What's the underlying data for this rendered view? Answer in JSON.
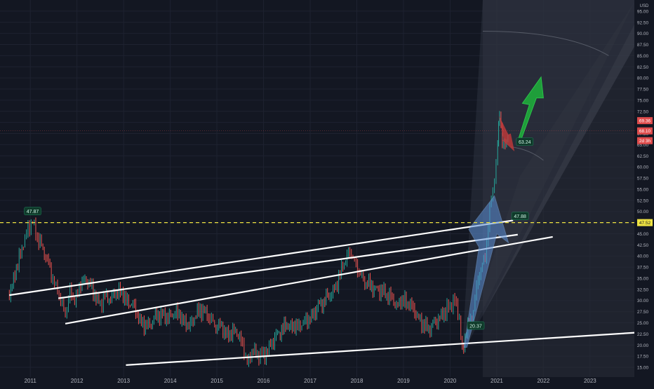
{
  "chart_data": {
    "type": "candlestick",
    "currency": "USD",
    "x_ticks": [
      "2011",
      "2012",
      "2013",
      "2014",
      "2015",
      "2016",
      "2017",
      "2018",
      "2019",
      "2020",
      "2021",
      "2022",
      "2023"
    ],
    "y_ticks": [
      "15.00",
      "17.50",
      "20.00",
      "22.50",
      "25.00",
      "27.50",
      "30.00",
      "32.50",
      "35.00",
      "37.50",
      "40.00",
      "42.50",
      "45.00",
      "47.50",
      "50.00",
      "52.50",
      "55.00",
      "57.50",
      "60.00",
      "62.50",
      "65.00",
      "67.50",
      "70.00",
      "72.50",
      "75.00",
      "77.50",
      "80.00",
      "82.50",
      "85.00",
      "87.50",
      "90.00",
      "92.50",
      "95.00"
    ],
    "ylim": [
      12.8,
      97.5
    ],
    "xlim": [
      2010.35,
      2023.95
    ],
    "price_series": [
      [
        2010.55,
        31.5
      ],
      [
        2010.7,
        37
      ],
      [
        2010.85,
        43
      ],
      [
        2010.95,
        46
      ],
      [
        2011.05,
        47.87
      ],
      [
        2011.15,
        44
      ],
      [
        2011.3,
        41
      ],
      [
        2011.45,
        36
      ],
      [
        2011.55,
        33
      ],
      [
        2011.65,
        30
      ],
      [
        2011.75,
        27
      ],
      [
        2011.85,
        32
      ],
      [
        2011.95,
        30
      ],
      [
        2012.05,
        33
      ],
      [
        2012.2,
        35
      ],
      [
        2012.35,
        32
      ],
      [
        2012.5,
        29
      ],
      [
        2012.6,
        31
      ],
      [
        2012.75,
        30.5
      ],
      [
        2012.9,
        32.5
      ],
      [
        2013.05,
        30
      ],
      [
        2013.2,
        29
      ],
      [
        2013.35,
        25.5
      ],
      [
        2013.5,
        24
      ],
      [
        2013.65,
        26
      ],
      [
        2013.8,
        27
      ],
      [
        2013.95,
        26
      ],
      [
        2014.1,
        27.5
      ],
      [
        2014.25,
        26
      ],
      [
        2014.4,
        24
      ],
      [
        2014.55,
        27
      ],
      [
        2014.7,
        28
      ],
      [
        2014.85,
        26
      ],
      [
        2014.95,
        24.5
      ],
      [
        2015.1,
        24
      ],
      [
        2015.25,
        22
      ],
      [
        2015.4,
        23.5
      ],
      [
        2015.55,
        20
      ],
      [
        2015.65,
        16
      ],
      [
        2015.75,
        18.5
      ],
      [
        2015.9,
        18
      ],
      [
        2016.0,
        17.5
      ],
      [
        2016.15,
        20
      ],
      [
        2016.3,
        22.5
      ],
      [
        2016.5,
        24.5
      ],
      [
        2016.7,
        24
      ],
      [
        2016.85,
        25
      ],
      [
        2017.0,
        26
      ],
      [
        2017.2,
        29
      ],
      [
        2017.4,
        31
      ],
      [
        2017.55,
        33
      ],
      [
        2017.7,
        38
      ],
      [
        2017.85,
        41
      ],
      [
        2017.95,
        39
      ],
      [
        2018.05,
        36
      ],
      [
        2018.2,
        34
      ],
      [
        2018.4,
        32.5
      ],
      [
        2018.55,
        32
      ],
      [
        2018.7,
        31
      ],
      [
        2018.85,
        29
      ],
      [
        2019.0,
        30
      ],
      [
        2019.15,
        29
      ],
      [
        2019.3,
        26.5
      ],
      [
        2019.45,
        24
      ],
      [
        2019.6,
        24
      ],
      [
        2019.75,
        26
      ],
      [
        2019.9,
        27.5
      ],
      [
        2020.0,
        29
      ],
      [
        2020.1,
        30
      ],
      [
        2020.2,
        26
      ],
      [
        2020.26,
        18.5
      ],
      [
        2020.35,
        23
      ],
      [
        2020.5,
        28
      ],
      [
        2020.6,
        35
      ],
      [
        2020.75,
        40
      ],
      [
        2020.85,
        50
      ],
      [
        2020.95,
        58
      ],
      [
        2021.02,
        64
      ],
      [
        2021.06,
        72.5
      ],
      [
        2021.12,
        66
      ],
      [
        2021.18,
        64.5
      ],
      [
        2021.27,
        68.1
      ]
    ],
    "current_price": "68.10",
    "price_tags": [
      "69.36",
      "68.10",
      "2d 3h"
    ],
    "dashed_level": 47.5,
    "dashed_level_label": "47.52",
    "labels": [
      {
        "text": "47.87",
        "x": 2011.05,
        "y": 50.0
      },
      {
        "text": "47.88",
        "x": 2021.5,
        "y": 48.9
      },
      {
        "text": "20.37",
        "x": 2020.55,
        "y": 24.3
      },
      {
        "text": "63.24",
        "x": 2021.6,
        "y": 65.6
      }
    ],
    "trendlines": [
      [
        2010.55,
        31.2,
        2021.35,
        48.0
      ],
      [
        2011.6,
        30.5,
        2021.45,
        44.8
      ],
      [
        2011.75,
        24.8,
        2022.2,
        44.3
      ],
      [
        2013.05,
        15.5,
        2024.0,
        22.8
      ]
    ],
    "grid": true,
    "legend": "none"
  }
}
